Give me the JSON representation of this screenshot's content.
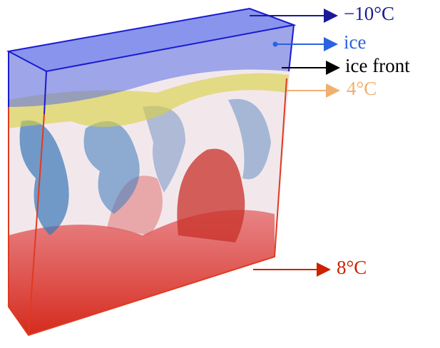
{
  "labels": {
    "top_temperature": "−10°C",
    "ice": "ice",
    "ice_front": "ice front",
    "density_max": "4°C",
    "bottom_temperature": "8°C"
  }
}
